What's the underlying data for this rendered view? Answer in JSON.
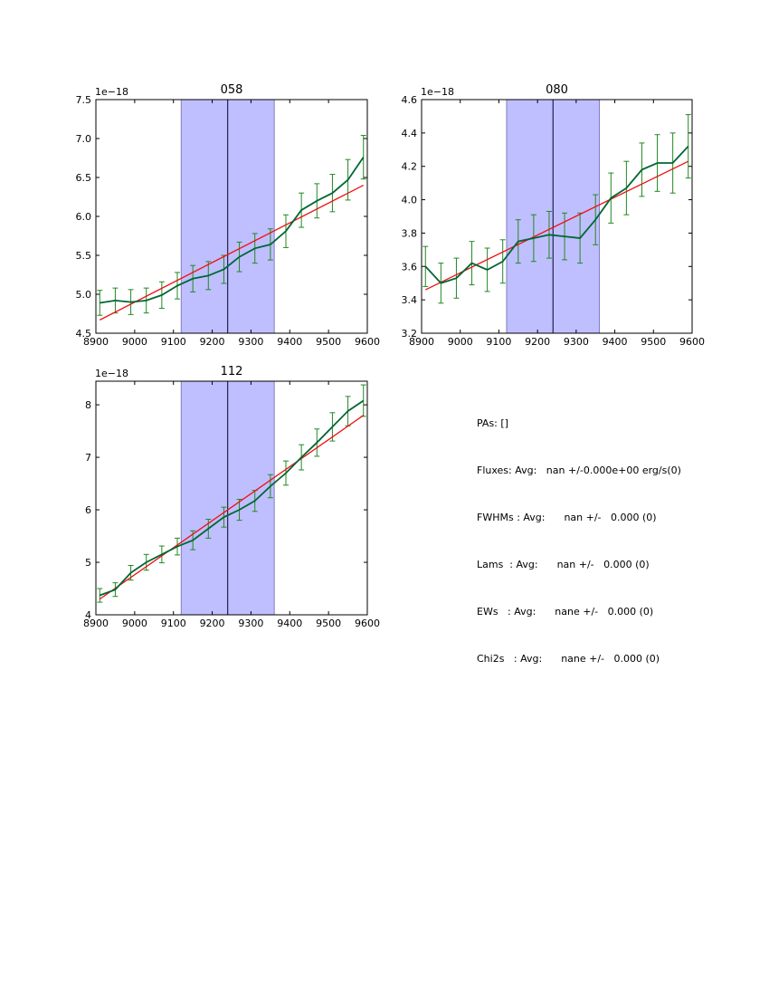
{
  "chart_data": [
    {
      "type": "line",
      "title": "058",
      "xlim": [
        8900,
        9600
      ],
      "ylim": [
        4.5,
        7.5
      ],
      "x_ticks": [
        "8900",
        "9000",
        "9100",
        "9200",
        "9300",
        "9400",
        "9500",
        "9600"
      ],
      "y_ticks": [
        "4.5",
        "5.0",
        "5.5",
        "6.0",
        "6.5",
        "7.0",
        "7.5"
      ],
      "y_offset": "1e−18",
      "span": [
        9120,
        9360
      ],
      "vline": 9240,
      "fit": {
        "x": [
          8910,
          9590
        ],
        "y": [
          4.67,
          6.4
        ]
      },
      "series": [
        {
          "x": [
            8910,
            8950,
            8990,
            9030,
            9070,
            9110,
            9150,
            9190,
            9230,
            9270,
            9310,
            9350,
            9390,
            9430,
            9470,
            9510,
            9550,
            9590
          ],
          "y": [
            4.89,
            4.92,
            4.9,
            4.92,
            4.99,
            5.11,
            5.2,
            5.24,
            5.32,
            5.48,
            5.59,
            5.64,
            5.81,
            6.08,
            6.2,
            6.3,
            6.47,
            6.76
          ],
          "err": [
            0.16,
            0.16,
            0.16,
            0.16,
            0.17,
            0.17,
            0.17,
            0.18,
            0.18,
            0.19,
            0.19,
            0.2,
            0.21,
            0.22,
            0.22,
            0.24,
            0.26,
            0.28
          ]
        }
      ]
    },
    {
      "type": "line",
      "title": "080",
      "xlim": [
        8900,
        9600
      ],
      "ylim": [
        3.2,
        4.6
      ],
      "x_ticks": [
        "8900",
        "9000",
        "9100",
        "9200",
        "9300",
        "9400",
        "9500",
        "9600"
      ],
      "y_ticks": [
        "3.2",
        "3.4",
        "3.6",
        "3.8",
        "4.0",
        "4.2",
        "4.4",
        "4.6"
      ],
      "y_offset": "1e−18",
      "span": [
        9120,
        9360
      ],
      "vline": 9240,
      "fit": {
        "x": [
          8910,
          9590
        ],
        "y": [
          3.46,
          4.23
        ]
      },
      "series": [
        {
          "x": [
            8910,
            8950,
            8990,
            9030,
            9070,
            9110,
            9150,
            9190,
            9230,
            9270,
            9310,
            9350,
            9390,
            9430,
            9470,
            9510,
            9550,
            9590
          ],
          "y": [
            3.6,
            3.5,
            3.53,
            3.62,
            3.58,
            3.63,
            3.75,
            3.77,
            3.79,
            3.78,
            3.77,
            3.88,
            4.01,
            4.07,
            4.18,
            4.22,
            4.22,
            4.32
          ],
          "err": [
            0.12,
            0.12,
            0.12,
            0.13,
            0.13,
            0.13,
            0.13,
            0.14,
            0.14,
            0.14,
            0.15,
            0.15,
            0.15,
            0.16,
            0.16,
            0.17,
            0.18,
            0.19
          ]
        }
      ]
    },
    {
      "type": "line",
      "title": "112",
      "xlim": [
        8900,
        9600
      ],
      "ylim": [
        4,
        8.45
      ],
      "x_ticks": [
        "8900",
        "9000",
        "9100",
        "9200",
        "9300",
        "9400",
        "9500",
        "9600"
      ],
      "y_ticks": [
        "4",
        "5",
        "6",
        "7",
        "8"
      ],
      "y_offset": "1e−18",
      "span": [
        9120,
        9360
      ],
      "vline": 9240,
      "fit": {
        "x": [
          8910,
          9590
        ],
        "y": [
          4.3,
          7.8
        ]
      },
      "series": [
        {
          "x": [
            8910,
            8950,
            8990,
            9030,
            9070,
            9110,
            9150,
            9190,
            9230,
            9270,
            9310,
            9350,
            9390,
            9430,
            9470,
            9510,
            9550,
            9590
          ],
          "y": [
            4.37,
            4.48,
            4.8,
            5.0,
            5.15,
            5.3,
            5.42,
            5.64,
            5.86,
            6.0,
            6.17,
            6.45,
            6.7,
            7.0,
            7.28,
            7.58,
            7.88,
            8.08
          ],
          "err": [
            0.13,
            0.13,
            0.14,
            0.15,
            0.16,
            0.16,
            0.18,
            0.18,
            0.19,
            0.2,
            0.2,
            0.22,
            0.23,
            0.24,
            0.26,
            0.27,
            0.28,
            0.3
          ]
        }
      ]
    }
  ],
  "colors": {
    "data_line": "#006633",
    "error_bar": "#228822",
    "fit_line": "#ee1111",
    "span_fill": "#bfbfff",
    "span_edge": "#7f7fbf",
    "vline": "#000033"
  },
  "summary": {
    "lines": [
      "PAs: []",
      "Fluxes: Avg:   nan +/-0.000e+00 erg/s(0)",
      "FWHMs : Avg:      nan +/-   0.000 (0)",
      "Lams  : Avg:      nan +/-   0.000 (0)",
      "EWs   : Avg:      nane +/-   0.000 (0)",
      "Chi2s   : Avg:      nane +/-   0.000 (0)"
    ]
  }
}
